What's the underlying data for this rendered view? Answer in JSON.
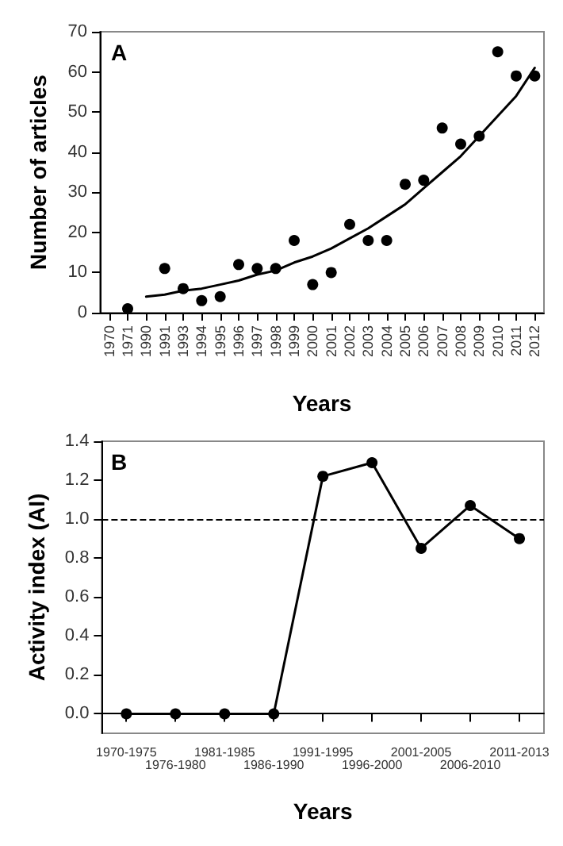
{
  "chart_data": [
    {
      "type": "scatter",
      "xlabel": "Years",
      "ylabel": "Number of articles",
      "annotations": [
        "A"
      ],
      "categories": [
        "1970",
        "1971",
        "1990",
        "1991",
        "1993",
        "1994",
        "1995",
        "1996",
        "1997",
        "1998",
        "1999",
        "2000",
        "2001",
        "2002",
        "2003",
        "2004",
        "2005",
        "2006",
        "2007",
        "2008",
        "2009",
        "2010",
        "2011",
        "2012"
      ],
      "series": [
        {
          "color": "#000000",
          "marker": "circle",
          "values": [
            null,
            1,
            null,
            11,
            6,
            3,
            4,
            12,
            11,
            11,
            18,
            7,
            10,
            22,
            18,
            18,
            32,
            33,
            46,
            42,
            44,
            65,
            59,
            59
          ]
        },
        {
          "type": "line",
          "color": "#000000",
          "marker": "none",
          "values": [
            null,
            null,
            4,
            4.5,
            5.5,
            6,
            7,
            8,
            9.5,
            10.5,
            12.5,
            14,
            16,
            18.5,
            21,
            24,
            27,
            31,
            35,
            39,
            44,
            49,
            54,
            61
          ]
        }
      ],
      "ylim": [
        0,
        70
      ],
      "yticks": [
        0,
        10,
        20,
        30,
        40,
        50,
        60,
        70
      ],
      "grid": false
    },
    {
      "type": "line",
      "xlabel": "Years",
      "ylabel": "Activity index (AI)",
      "annotations": [
        "B"
      ],
      "categories": [
        "1970-1975",
        "1976-1980",
        "1981-1985",
        "1986-1990",
        "1991-1995",
        "1996-2000",
        "2001-2005",
        "2006-2010",
        "2011-2013"
      ],
      "series": [
        {
          "color": "#000000",
          "values": [
            0,
            0,
            0,
            0,
            1.22,
            1.29,
            0.85,
            1.07,
            0.9
          ]
        }
      ],
      "marker": "circle",
      "line_style": "solid",
      "ylim": [
        -0.1,
        1.4
      ],
      "yticks": [
        {
          "value": 0,
          "label": "0.0"
        },
        {
          "value": 0.2,
          "label": "0.2"
        },
        {
          "value": 0.4,
          "label": "0.4"
        },
        {
          "value": 0.6,
          "label": "0.6"
        },
        {
          "value": 0.8,
          "label": "0.8"
        },
        {
          "value": 1,
          "label": "1.0"
        },
        {
          "value": 1.2,
          "label": "1.2"
        },
        {
          "value": 1.4,
          "label": "1.4"
        }
      ],
      "ref_lines": [
        {
          "axis": "y",
          "value": 1,
          "line_style": "dashed"
        }
      ],
      "grid": false
    }
  ]
}
